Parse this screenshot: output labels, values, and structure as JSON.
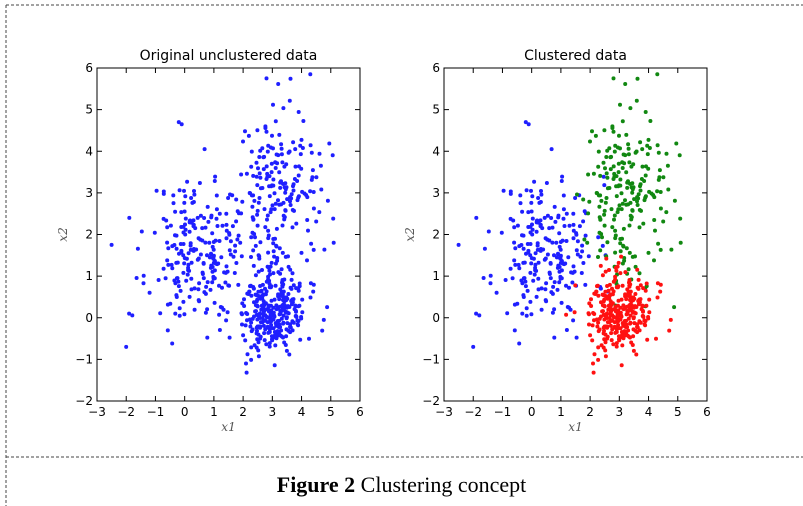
{
  "chart_data": [
    {
      "type": "scatter",
      "title": "Original unclustered data",
      "xlabel": "x1",
      "ylabel": "x2",
      "xlim": [
        -3,
        6
      ],
      "ylim": [
        -2,
        6
      ],
      "xticks": [
        "−3",
        "−2",
        "−1",
        "0",
        "1",
        "2",
        "3",
        "4",
        "5",
        "6"
      ],
      "yticks": [
        "−2",
        "−1",
        "0",
        "1",
        "2",
        "3",
        "4",
        "5",
        "6"
      ],
      "grid": false,
      "series": [
        {
          "color": "#1f1fff",
          "clusters": [
            {
              "center": [
                0.5,
                1.6
              ],
              "spread": [
                0.85,
                0.9
              ],
              "count": 230
            },
            {
              "center": [
                3.1,
                3.0
              ],
              "spread": [
                0.75,
                1.05
              ],
              "count": 210
            },
            {
              "center": [
                3.0,
                0.1
              ],
              "spread": [
                0.55,
                0.45
              ],
              "count": 300
            }
          ],
          "points": [
            [
              -2.5,
              1.75
            ],
            [
              -2.0,
              -0.7
            ],
            [
              -0.2,
              4.7
            ],
            [
              -0.1,
              4.65
            ],
            [
              4.3,
              5.85
            ],
            [
              2.8,
              5.75
            ],
            [
              5.1,
              1.8
            ],
            [
              2.1,
              -1.1
            ],
            [
              -1.9,
              0.1
            ]
          ]
        }
      ]
    },
    {
      "type": "scatter",
      "title": "Clustered data",
      "xlabel": "x1",
      "ylabel": "x2",
      "xlim": [
        -3,
        6
      ],
      "ylim": [
        -2,
        6
      ],
      "xticks": [
        "−3",
        "−2",
        "−1",
        "0",
        "1",
        "2",
        "3",
        "4",
        "5",
        "6"
      ],
      "yticks": [
        "−2",
        "−1",
        "0",
        "1",
        "2",
        "3",
        "4",
        "5",
        "6"
      ],
      "grid": false,
      "series": [
        {
          "color": "#1f1fff",
          "center": [
            0.5,
            1.6
          ],
          "spread": [
            0.85,
            0.9
          ],
          "count": 230,
          "points": [
            [
              -2.5,
              1.75
            ],
            [
              -2.0,
              -0.7
            ],
            [
              -0.2,
              4.7
            ],
            [
              -0.1,
              4.65
            ],
            [
              -1.9,
              0.1
            ]
          ]
        },
        {
          "color": "#118811",
          "center": [
            3.1,
            3.0
          ],
          "spread": [
            0.75,
            1.05
          ],
          "count": 210,
          "points": [
            [
              4.3,
              5.85
            ],
            [
              2.8,
              5.75
            ],
            [
              5.1,
              1.8
            ]
          ]
        },
        {
          "color": "#ff1111",
          "center": [
            3.0,
            0.1
          ],
          "spread": [
            0.55,
            0.45
          ],
          "count": 300,
          "points": [
            [
              2.1,
              -1.1
            ]
          ]
        }
      ]
    }
  ],
  "caption": {
    "label": "Figure 2",
    "text": " Clustering concept"
  }
}
